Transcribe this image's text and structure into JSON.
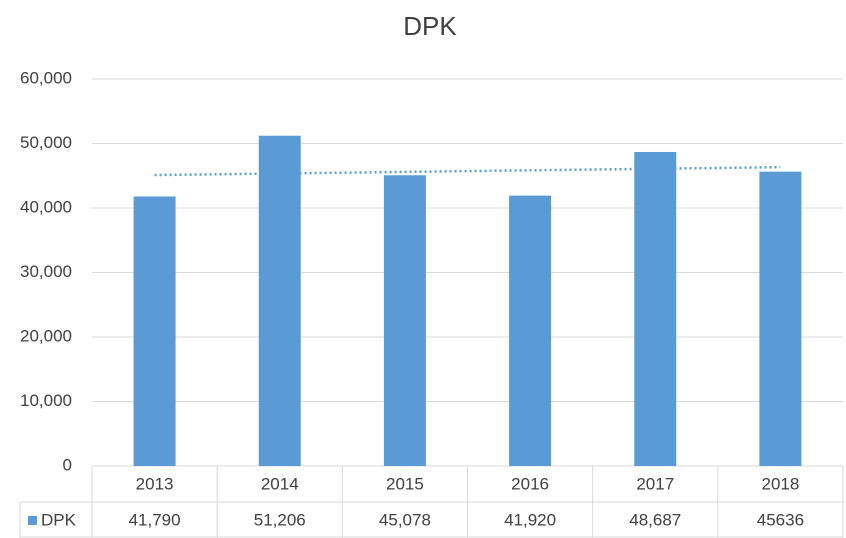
{
  "chart_data": {
    "type": "bar",
    "title": "DPK",
    "categories": [
      "2013",
      "2014",
      "2015",
      "2016",
      "2017",
      "2018"
    ],
    "series": [
      {
        "name": "DPK",
        "color": "#5b9bd5",
        "values": [
          41790,
          51206,
          45078,
          41920,
          48687,
          45636
        ],
        "value_labels": [
          "41,790",
          "51,206",
          "45,078",
          "41,920",
          "48,687",
          "45636"
        ]
      }
    ],
    "ylim": [
      0,
      60000
    ],
    "yticks": [
      0,
      {
        "value": 10000,
        "label": "10,000"
      },
      {
        "value": 20000,
        "label": "20,000"
      },
      {
        "value": 30000,
        "label": "30,000"
      },
      {
        "value": 40000,
        "label": "40,000"
      },
      {
        "value": 50000,
        "label": "50,000"
      },
      {
        "value": 60000,
        "label": "60,000"
      }
    ],
    "grid": true,
    "trendline": "linear",
    "data_table": true
  }
}
